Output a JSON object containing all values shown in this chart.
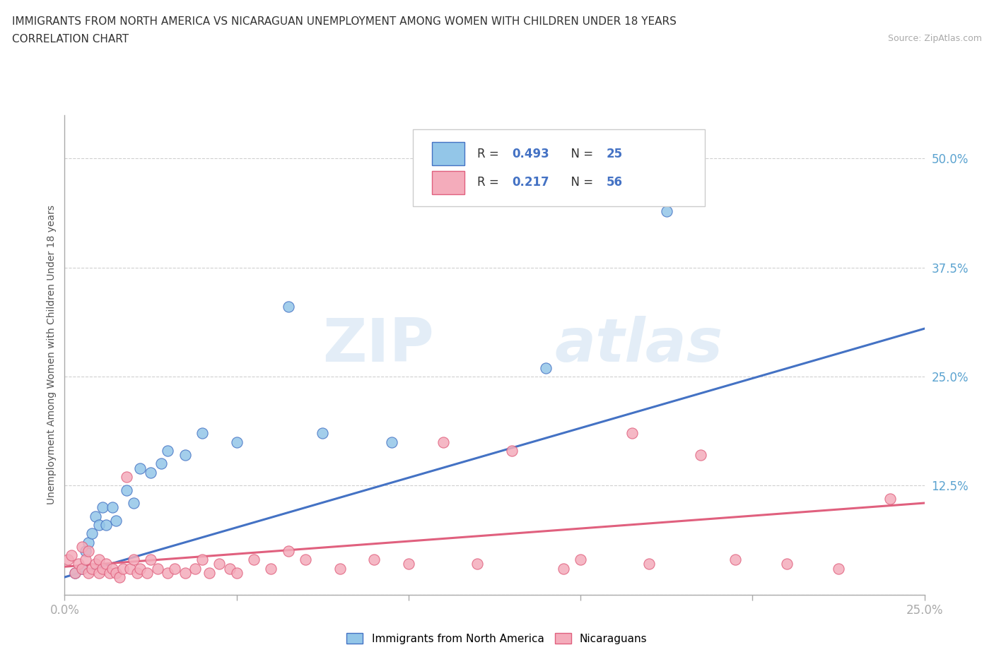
{
  "title_line1": "IMMIGRANTS FROM NORTH AMERICA VS NICARAGUAN UNEMPLOYMENT AMONG WOMEN WITH CHILDREN UNDER 18 YEARS",
  "title_line2": "CORRELATION CHART",
  "source_text": "Source: ZipAtlas.com",
  "ylabel": "Unemployment Among Women with Children Under 18 years",
  "xlim": [
    0.0,
    0.25
  ],
  "ylim": [
    0.0,
    0.55
  ],
  "y_ticks_right": [
    0.0,
    0.125,
    0.25,
    0.375,
    0.5
  ],
  "y_tick_labels_right": [
    "",
    "12.5%",
    "25.0%",
    "37.5%",
    "50.0%"
  ],
  "color_blue": "#93C6E8",
  "color_pink": "#F4ACBB",
  "line_color_blue": "#4472C4",
  "line_color_pink": "#E0607E",
  "watermark_zip": "ZIP",
  "watermark_atlas": "atlas",
  "bg_color": "#FFFFFF",
  "grid_color": "#D0D0D0",
  "blue_scatter_x": [
    0.003,
    0.005,
    0.006,
    0.007,
    0.008,
    0.009,
    0.01,
    0.011,
    0.012,
    0.014,
    0.015,
    0.018,
    0.02,
    0.022,
    0.025,
    0.028,
    0.03,
    0.035,
    0.04,
    0.05,
    0.065,
    0.075,
    0.095,
    0.14,
    0.175
  ],
  "blue_scatter_y": [
    0.025,
    0.03,
    0.05,
    0.06,
    0.07,
    0.09,
    0.08,
    0.1,
    0.08,
    0.1,
    0.085,
    0.12,
    0.105,
    0.145,
    0.14,
    0.15,
    0.165,
    0.16,
    0.185,
    0.175,
    0.33,
    0.185,
    0.175,
    0.26,
    0.44
  ],
  "pink_scatter_x": [
    0.001,
    0.002,
    0.003,
    0.004,
    0.005,
    0.005,
    0.006,
    0.007,
    0.007,
    0.008,
    0.009,
    0.01,
    0.01,
    0.011,
    0.012,
    0.013,
    0.014,
    0.015,
    0.016,
    0.017,
    0.018,
    0.019,
    0.02,
    0.021,
    0.022,
    0.024,
    0.025,
    0.027,
    0.03,
    0.032,
    0.035,
    0.038,
    0.04,
    0.042,
    0.045,
    0.048,
    0.05,
    0.055,
    0.06,
    0.065,
    0.07,
    0.08,
    0.09,
    0.1,
    0.11,
    0.12,
    0.13,
    0.145,
    0.15,
    0.165,
    0.17,
    0.185,
    0.195,
    0.21,
    0.225,
    0.24
  ],
  "pink_scatter_y": [
    0.04,
    0.045,
    0.025,
    0.035,
    0.03,
    0.055,
    0.04,
    0.025,
    0.05,
    0.03,
    0.035,
    0.04,
    0.025,
    0.03,
    0.035,
    0.025,
    0.03,
    0.025,
    0.02,
    0.03,
    0.135,
    0.03,
    0.04,
    0.025,
    0.03,
    0.025,
    0.04,
    0.03,
    0.025,
    0.03,
    0.025,
    0.03,
    0.04,
    0.025,
    0.035,
    0.03,
    0.025,
    0.04,
    0.03,
    0.05,
    0.04,
    0.03,
    0.04,
    0.035,
    0.175,
    0.035,
    0.165,
    0.03,
    0.04,
    0.185,
    0.035,
    0.16,
    0.04,
    0.035,
    0.03,
    0.11
  ],
  "blue_line_x": [
    0.0,
    0.25
  ],
  "blue_line_y": [
    0.02,
    0.305
  ],
  "pink_line_x": [
    0.0,
    0.25
  ],
  "pink_line_y": [
    0.032,
    0.105
  ]
}
